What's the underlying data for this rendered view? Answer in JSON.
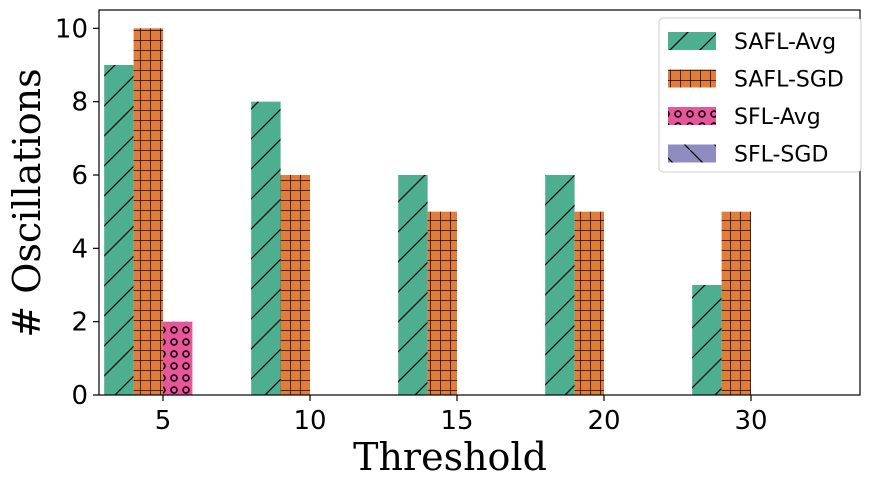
{
  "chart_data": {
    "type": "bar",
    "categories": [
      "5",
      "10",
      "15",
      "20",
      "30"
    ],
    "series": [
      {
        "name": "SAFL-Avg",
        "values": [
          9,
          8,
          6,
          6,
          3
        ],
        "color": "#4daf8f",
        "hatch": "diagonal-forward"
      },
      {
        "name": "SAFL-SGD",
        "values": [
          10,
          6,
          5,
          5,
          5
        ],
        "color": "#e07e39",
        "hatch": "grid"
      },
      {
        "name": "SFL-Avg",
        "values": [
          2,
          0,
          0,
          0,
          0
        ],
        "color": "#e8559a",
        "hatch": "circles"
      },
      {
        "name": "SFL-SGD",
        "values": [
          0,
          0,
          0,
          0,
          0
        ],
        "color": "#8f8cc2",
        "hatch": "diagonal-back"
      }
    ],
    "xlabel": "Threshold",
    "ylabel": "# Oscillations",
    "ylim": [
      0,
      10.5
    ],
    "yticks": [
      0,
      2,
      4,
      6,
      8,
      10
    ],
    "grid": false,
    "legend": "top-right"
  }
}
